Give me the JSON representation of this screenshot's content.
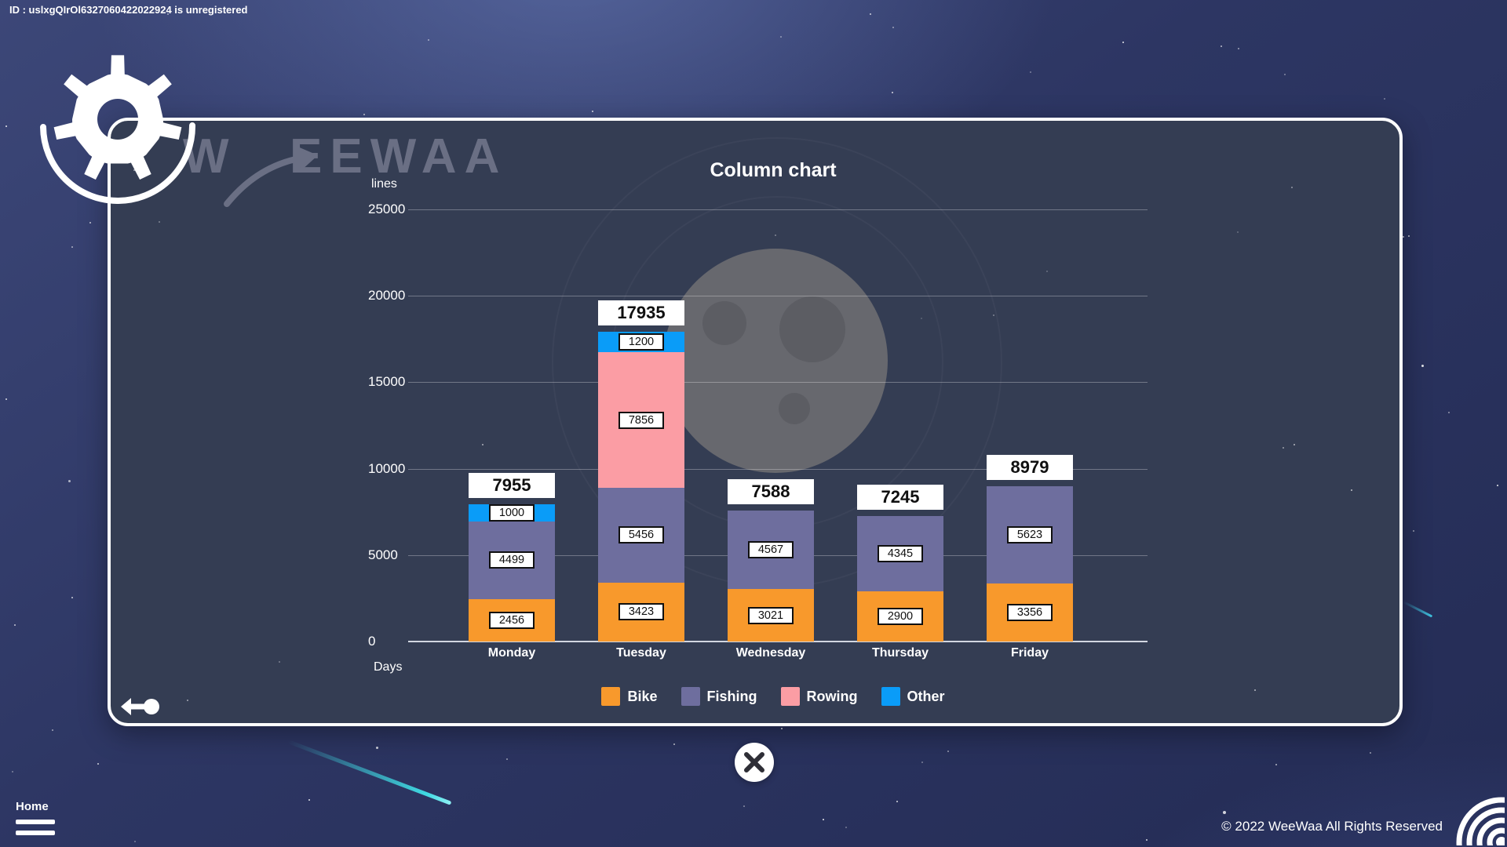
{
  "app": {
    "id_banner": "ID : uslxgQIrOl6327060422022924 is unregistered",
    "brand_mark": "W",
    "brand": "EEWAA",
    "home_label": "Home",
    "copyright": "© 2022 WeeWaa All Rights Reserved"
  },
  "chart_data": {
    "type": "bar",
    "stacked": true,
    "title": "Column chart",
    "xlabel": "Days",
    "ylabel": "lines",
    "categories": [
      "Monday",
      "Tuesday",
      "Wednesday",
      "Thursday",
      "Friday"
    ],
    "series": [
      {
        "name": "Bike",
        "color": "#F8992C",
        "values": [
          2456,
          3423,
          3021,
          2900,
          3356
        ]
      },
      {
        "name": "Fishing",
        "color": "#6E6E9E",
        "values": [
          4499,
          5456,
          4567,
          4345,
          5623
        ]
      },
      {
        "name": "Rowing",
        "color": "#FB9DA4",
        "values": [
          0,
          7856,
          0,
          0,
          0
        ]
      },
      {
        "name": "Other",
        "color": "#0A9CF8",
        "values": [
          1000,
          1200,
          0,
          0,
          0
        ]
      }
    ],
    "totals": [
      7955,
      17935,
      7588,
      7245,
      8979
    ],
    "y_ticks": [
      0,
      5000,
      10000,
      15000,
      20000,
      25000
    ],
    "ylim": [
      0,
      25000
    ],
    "grid": true,
    "legend_position": "bottom"
  },
  "ui_colors": {
    "panel_background": "#343d53",
    "accent_cyan": "#3fd9e2",
    "label_box": "#ffffff",
    "text": "#ffffff"
  }
}
